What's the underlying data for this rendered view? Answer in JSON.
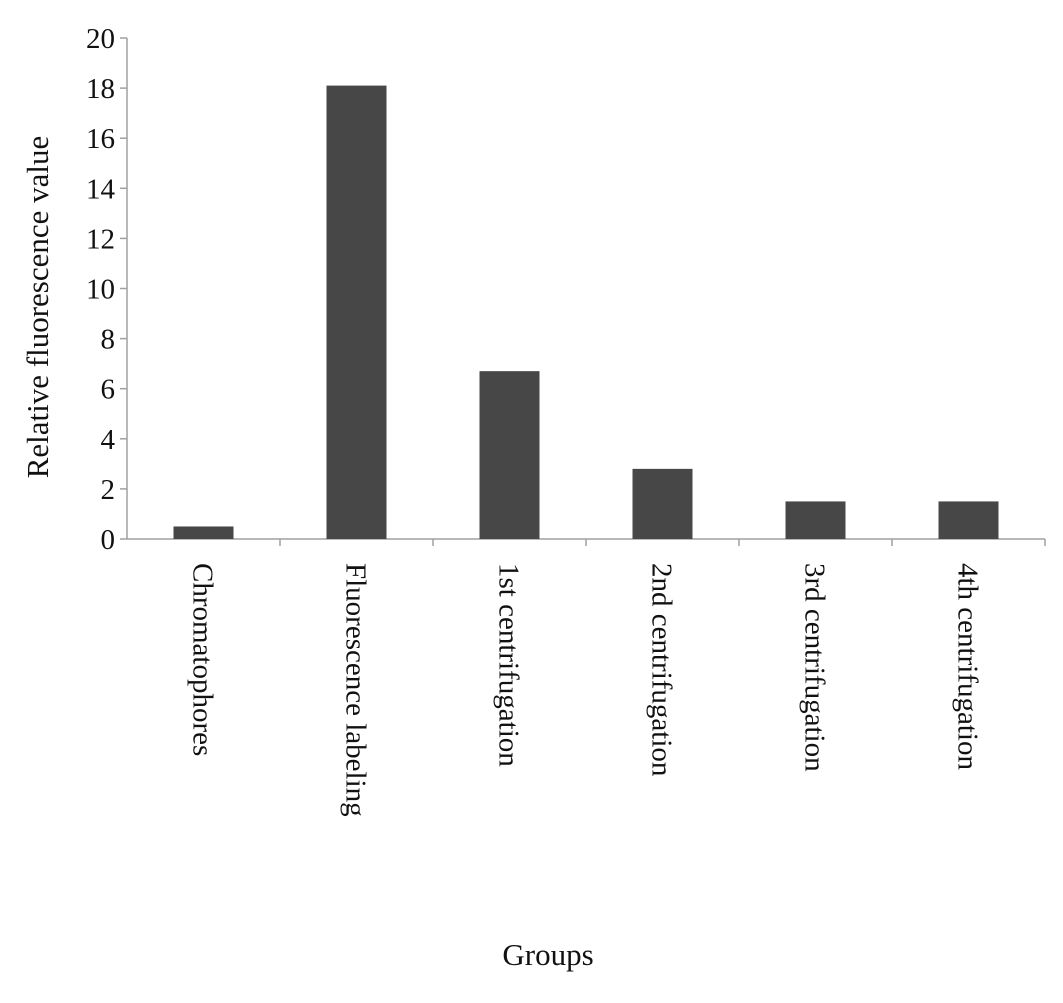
{
  "chart_data": {
    "type": "bar",
    "title": "",
    "xlabel": "Groups",
    "ylabel": "Relative fluorescence value",
    "categories": [
      "Chromatophores",
      "Fluorescence labeling",
      "1st  centrifugation",
      "2nd centrifugation",
      "3rd centrifugation",
      "4th  centrifugation"
    ],
    "values": [
      0.5,
      18.1,
      6.7,
      2.8,
      1.5,
      1.5
    ],
    "ylim": [
      0,
      20
    ],
    "yticks": [
      "0",
      "2",
      "4",
      "6",
      "8",
      "10",
      "12",
      "14",
      "16",
      "18",
      "20"
    ],
    "grid": false,
    "legend": "none",
    "bar_color": "#474747",
    "axis_color": "#a0a0a0"
  }
}
